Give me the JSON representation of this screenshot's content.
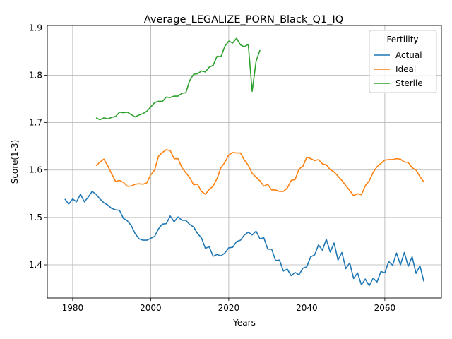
{
  "chart_data": {
    "type": "line",
    "title": "Average_LEGALIZE_PORN_Black_Q1_IQ",
    "xlabel": "Years",
    "ylabel": "Score(1-3)",
    "xlim": [
      1973.5,
      2074.5
    ],
    "ylim": [
      1.33,
      1.905
    ],
    "x_ticks": [
      1980,
      2000,
      2020,
      2040,
      2060
    ],
    "y_ticks": [
      1.4,
      1.5,
      1.6,
      1.7,
      1.8,
      1.9
    ],
    "x_tick_labels": [
      "1980",
      "2000",
      "2020",
      "2040",
      "2060"
    ],
    "y_tick_labels": [
      "1.4",
      "1.5",
      "1.6",
      "1.7",
      "1.8",
      "1.9"
    ],
    "grid": true,
    "legend": {
      "title": "Fertility",
      "placement": "top-right"
    },
    "series": [
      {
        "name": "Actual",
        "color": "#1f77b4",
        "x": [
          1978,
          1979,
          1980,
          1981,
          1982,
          1983,
          1984,
          1985,
          1986,
          1987,
          1988,
          1989,
          1990,
          1991,
          1992,
          1993,
          1994,
          1995,
          1996,
          1997,
          1998,
          1999,
          2000,
          2001,
          2002,
          2003,
          2004,
          2005,
          2006,
          2007,
          2008,
          2009,
          2010,
          2011,
          2012,
          2013,
          2014,
          2015,
          2016,
          2017,
          2018,
          2019,
          2020,
          2021,
          2022,
          2023,
          2024,
          2025,
          2026,
          2027,
          2028,
          2029,
          2030,
          2031,
          2032,
          2033,
          2034,
          2035,
          2036,
          2037,
          2038,
          2039,
          2040,
          2041,
          2042,
          2043,
          2044,
          2045,
          2046,
          2047,
          2048,
          2049,
          2050,
          2051,
          2052,
          2053,
          2054,
          2055,
          2056,
          2057,
          2058,
          2059,
          2060,
          2061,
          2062,
          2063,
          2064,
          2065,
          2066,
          2067,
          2068,
          2069,
          2070
        ],
        "values": [
          1.539,
          1.528,
          1.539,
          1.533,
          1.549,
          1.533,
          1.543,
          1.555,
          1.549,
          1.539,
          1.531,
          1.526,
          1.519,
          1.516,
          1.515,
          1.498,
          1.493,
          1.483,
          1.466,
          1.455,
          1.452,
          1.452,
          1.456,
          1.46,
          1.476,
          1.486,
          1.487,
          1.503,
          1.491,
          1.501,
          1.494,
          1.494,
          1.485,
          1.48,
          1.466,
          1.457,
          1.435,
          1.438,
          1.418,
          1.422,
          1.419,
          1.425,
          1.436,
          1.437,
          1.449,
          1.452,
          1.463,
          1.469,
          1.463,
          1.471,
          1.455,
          1.457,
          1.433,
          1.433,
          1.409,
          1.41,
          1.387,
          1.391,
          1.377,
          1.384,
          1.379,
          1.393,
          1.396,
          1.417,
          1.421,
          1.442,
          1.431,
          1.454,
          1.427,
          1.446,
          1.41,
          1.426,
          1.392,
          1.404,
          1.371,
          1.383,
          1.358,
          1.37,
          1.356,
          1.372,
          1.364,
          1.386,
          1.383,
          1.407,
          1.399,
          1.425,
          1.4,
          1.426,
          1.397,
          1.417,
          1.382,
          1.398,
          1.365
        ]
      },
      {
        "name": "Ideal",
        "color": "#ff7f0e",
        "x": [
          1986,
          1987,
          1988,
          1989,
          1990,
          1991,
          1992,
          1993,
          1994,
          1995,
          1996,
          1997,
          1998,
          1999,
          2000,
          2001,
          2002,
          2003,
          2004,
          2005,
          2006,
          2007,
          2008,
          2009,
          2010,
          2011,
          2012,
          2013,
          2014,
          2015,
          2016,
          2017,
          2018,
          2019,
          2020,
          2021,
          2022,
          2023,
          2024,
          2025,
          2026,
          2027,
          2028,
          2029,
          2030,
          2031,
          2032,
          2033,
          2034,
          2035,
          2036,
          2037,
          2038,
          2039,
          2040,
          2041,
          2042,
          2043,
          2044,
          2045,
          2046,
          2047,
          2048,
          2049,
          2050,
          2051,
          2052,
          2053,
          2054,
          2055,
          2056,
          2057,
          2058,
          2059,
          2060,
          2061,
          2062,
          2063,
          2064,
          2065,
          2066,
          2067,
          2068,
          2069,
          2070
        ],
        "values": [
          1.609,
          1.617,
          1.623,
          1.609,
          1.592,
          1.576,
          1.578,
          1.574,
          1.566,
          1.566,
          1.57,
          1.571,
          1.57,
          1.573,
          1.59,
          1.6,
          1.629,
          1.637,
          1.643,
          1.641,
          1.624,
          1.624,
          1.605,
          1.594,
          1.584,
          1.569,
          1.57,
          1.555,
          1.549,
          1.559,
          1.566,
          1.582,
          1.605,
          1.616,
          1.632,
          1.637,
          1.636,
          1.636,
          1.621,
          1.61,
          1.593,
          1.585,
          1.577,
          1.566,
          1.57,
          1.558,
          1.558,
          1.555,
          1.555,
          1.562,
          1.578,
          1.58,
          1.602,
          1.608,
          1.627,
          1.624,
          1.62,
          1.622,
          1.613,
          1.611,
          1.601,
          1.596,
          1.587,
          1.578,
          1.567,
          1.557,
          1.546,
          1.55,
          1.548,
          1.567,
          1.577,
          1.595,
          1.607,
          1.614,
          1.621,
          1.622,
          1.622,
          1.624,
          1.623,
          1.617,
          1.616,
          1.605,
          1.6,
          1.586,
          1.575
        ]
      },
      {
        "name": "Sterile",
        "color": "#2ca02c",
        "x": [
          1986,
          1987,
          1988,
          1989,
          1990,
          1991,
          1992,
          1993,
          1994,
          1995,
          1996,
          1997,
          1998,
          1999,
          2000,
          2001,
          2002,
          2003,
          2004,
          2005,
          2006,
          2007,
          2008,
          2009,
          2010,
          2011,
          2012,
          2013,
          2014,
          2015,
          2016,
          2017,
          2018,
          2019,
          2020,
          2021,
          2022,
          2023,
          2024,
          2025,
          2026,
          2027,
          2028
        ],
        "values": [
          1.71,
          1.706,
          1.71,
          1.708,
          1.711,
          1.713,
          1.722,
          1.721,
          1.722,
          1.717,
          1.712,
          1.716,
          1.719,
          1.724,
          1.733,
          1.742,
          1.745,
          1.745,
          1.754,
          1.753,
          1.756,
          1.756,
          1.762,
          1.763,
          1.789,
          1.802,
          1.803,
          1.809,
          1.807,
          1.817,
          1.821,
          1.84,
          1.839,
          1.861,
          1.872,
          1.868,
          1.878,
          1.864,
          1.86,
          1.865,
          1.766,
          1.829,
          1.853
        ]
      }
    ]
  }
}
